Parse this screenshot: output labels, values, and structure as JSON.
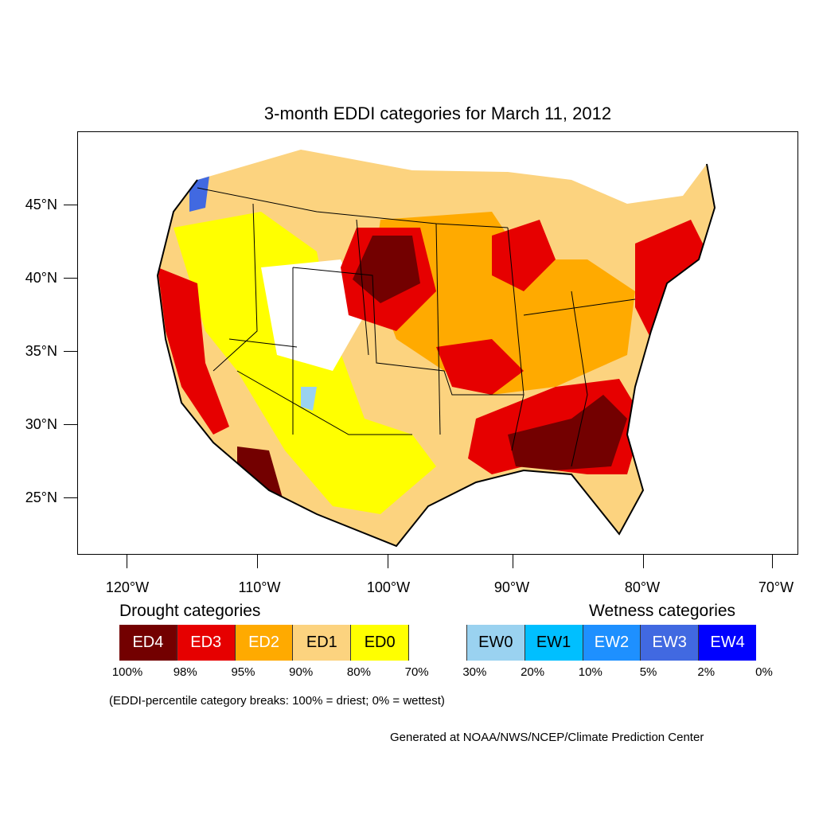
{
  "map": {
    "title": "3-month EDDI categories for March 11, 2012",
    "lat_labels": [
      "45°N",
      "40°N",
      "35°N",
      "30°N",
      "25°N"
    ],
    "lon_labels": [
      "120°W",
      "110°W",
      "100°W",
      "90°W",
      "80°W",
      "70°W"
    ]
  },
  "legend": {
    "drought_heading": "Drought categories",
    "wetness_heading": "Wetness categories",
    "categories": [
      {
        "label": "ED4",
        "color": "#730000",
        "text_color": "#ffffff"
      },
      {
        "label": "ED3",
        "color": "#e60000",
        "text_color": "#ffffff"
      },
      {
        "label": "ED2",
        "color": "#ffaa00",
        "text_color": "#ffffff"
      },
      {
        "label": "ED1",
        "color": "#fcd37f",
        "text_color": "#000000"
      },
      {
        "label": "ED0",
        "color": "#ffff00",
        "text_color": "#000000"
      },
      {
        "label": "",
        "color": "#ffffff",
        "text_color": "#000000"
      },
      {
        "label": "EW0",
        "color": "#9ad2f0",
        "text_color": "#000000"
      },
      {
        "label": "EW1",
        "color": "#00bfff",
        "text_color": "#000000"
      },
      {
        "label": "EW2",
        "color": "#1e90ff",
        "text_color": "#ffffff"
      },
      {
        "label": "EW3",
        "color": "#4169e1",
        "text_color": "#ffffff"
      },
      {
        "label": "EW4",
        "color": "#0000ff",
        "text_color": "#ffffff"
      }
    ],
    "breaks": [
      "100%",
      "98%",
      "95%",
      "90%",
      "80%",
      "70%",
      "30%",
      "20%",
      "10%",
      "5%",
      "2%",
      "0%"
    ],
    "note": "(EDDI-percentile category breaks: 100% = driest; 0% = wettest)"
  },
  "credit": "Generated at NOAA/NWS/NCEP/Climate Prediction Center"
}
